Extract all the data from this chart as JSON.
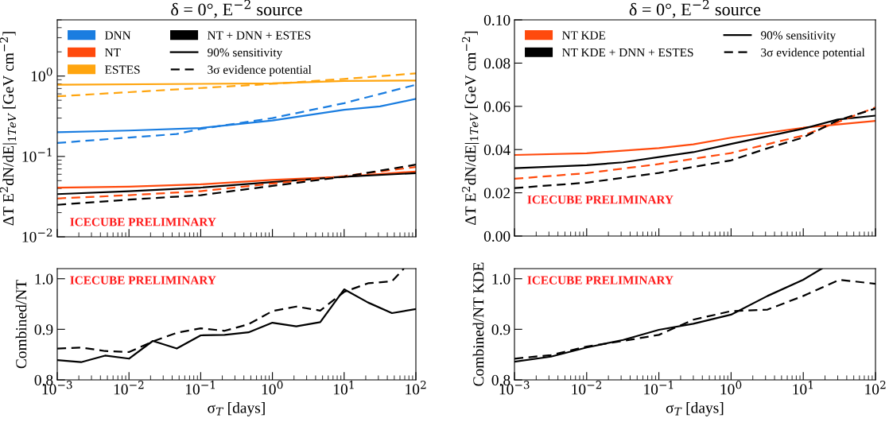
{
  "chart_data": [
    {
      "type": "line",
      "title": "δ = 0°, E$^{−2}$ source",
      "ylabel": "ΔT E$^{2}$dN/dE|$_{1TeV}$ [GeV cm$^{−2}$]",
      "log": "xy",
      "legend": "top left",
      "tick_labels": "y",
      "xlim": [
        0.001,
        100
      ],
      "ylim": [
        0.01,
        5
      ],
      "xticks": [
        {
          "value": 0.001,
          "label": null
        },
        {
          "value": 0.01,
          "label": null
        },
        {
          "value": 0.1,
          "label": null
        },
        {
          "value": 1,
          "label": null
        },
        {
          "value": 10,
          "label": null
        },
        {
          "value": 100,
          "label": null
        }
      ],
      "yticks": [
        {
          "value": 0.01,
          "label": "10$^{−2}$"
        },
        {
          "value": 0.1,
          "label": "10$^{−1}$"
        },
        {
          "value": 1,
          "label": "10$^{0}$"
        }
      ],
      "annotations": [
        "ICECUBE PRELIMINARY"
      ],
      "series": [
        {
          "name": "DNN",
          "color": "#1a7de0",
          "line_style": "solid",
          "x": [
            0.001,
            0.01,
            0.1,
            1,
            10,
            31.6,
            100
          ],
          "values": [
            0.2,
            0.21,
            0.226,
            0.28,
            0.38,
            0.42,
            0.52
          ]
        },
        {
          "name": "NT",
          "color": "#ff4a0d",
          "line_style": "solid",
          "x": [
            0.001,
            0.01,
            0.1,
            1,
            10,
            100
          ],
          "values": [
            0.041,
            0.042,
            0.045,
            0.051,
            0.056,
            0.065
          ]
        },
        {
          "name": "ESTES",
          "color": "#ffa50f",
          "line_style": "solid",
          "x": [
            0.001,
            1,
            10,
            100
          ],
          "values": [
            0.78,
            0.81,
            0.87,
            0.88
          ]
        },
        {
          "name": "NT + DNN + ESTES",
          "color": "#000000",
          "line_style": "solid",
          "x": [
            0.001,
            0.01,
            0.1,
            1,
            10,
            100
          ],
          "values": [
            0.034,
            0.037,
            0.041,
            0.048,
            0.056,
            0.062
          ]
        },
        {
          "name": "90% sensitivity",
          "color": "#000000",
          "line_style": "solid"
        },
        {
          "name": "3σ evidence potential",
          "color": "#000000",
          "line_style": "dashed"
        },
        {
          "color": "#1a7de0",
          "line_style": "dashed",
          "x": [
            0.001,
            0.01,
            0.046,
            0.1,
            1,
            10,
            100
          ],
          "values": [
            0.147,
            0.172,
            0.19,
            0.22,
            0.3,
            0.46,
            0.78
          ]
        },
        {
          "color": "#ff4a0d",
          "line_style": "dashed",
          "x": [
            0.001,
            0.01,
            0.1,
            1,
            10,
            100
          ],
          "values": [
            0.03,
            0.033,
            0.037,
            0.046,
            0.057,
            0.074
          ]
        },
        {
          "color": "#ffa50f",
          "line_style": "dashed",
          "x": [
            0.001,
            0.01,
            0.1,
            1,
            10,
            100
          ],
          "values": [
            0.56,
            0.63,
            0.71,
            0.8,
            0.92,
            1.08
          ]
        },
        {
          "color": "#000000",
          "line_style": "dashed",
          "x": [
            0.001,
            0.01,
            0.1,
            1,
            10,
            100
          ],
          "values": [
            0.025,
            0.029,
            0.033,
            0.043,
            0.056,
            0.079
          ]
        }
      ]
    },
    {
      "type": "line",
      "title": "δ = 0°, E$^{−2}$ source",
      "ylabel": "ΔT E$^{2}$dN/dE|$_{1TeV}$ [GeV cm$^{−2}$]",
      "log": "x",
      "legend": "top left",
      "tick_labels": "y",
      "xlim": [
        0.001,
        100
      ],
      "ylim": [
        0,
        0.1
      ],
      "xticks": [
        {
          "value": 0.001,
          "label": null
        },
        {
          "value": 0.01,
          "label": null
        },
        {
          "value": 0.1,
          "label": null
        },
        {
          "value": 1,
          "label": null
        },
        {
          "value": 10,
          "label": null
        },
        {
          "value": 100,
          "label": null
        }
      ],
      "yticks": [
        {
          "value": 0,
          "label": "0.00"
        },
        {
          "value": 0.02,
          "label": "0.02"
        },
        {
          "value": 0.04,
          "label": "0.04"
        },
        {
          "value": 0.06,
          "label": "0.06"
        },
        {
          "value": 0.08,
          "label": "0.08"
        },
        {
          "value": 0.1,
          "label": "0.10"
        }
      ],
      "annotations": [
        "ICECUBE PRELIMINARY"
      ],
      "series": [
        {
          "name": "NT KDE",
          "color": "#ff4a0d",
          "line_style": "solid",
          "x": [
            0.001,
            0.01,
            0.1,
            0.3,
            1,
            10,
            100
          ],
          "values": [
            0.0375,
            0.0383,
            0.0407,
            0.0424,
            0.0455,
            0.0501,
            0.0533
          ]
        },
        {
          "name": "NT KDE + DNN + ESTES",
          "color": "#000000",
          "line_style": "solid",
          "x": [
            0.001,
            0.01,
            0.032,
            0.1,
            0.3,
            1,
            10,
            30,
            100
          ],
          "values": [
            0.0314,
            0.0328,
            0.0341,
            0.0365,
            0.0388,
            0.0426,
            0.0497,
            0.0539,
            0.0557
          ]
        },
        {
          "name": "90% sensitivity",
          "color": "#000000",
          "line_style": "solid"
        },
        {
          "name": "3σ evidence potential",
          "color": "#000000",
          "line_style": "dashed"
        },
        {
          "color": "#ff4a0d",
          "line_style": "dashed",
          "x": [
            0.001,
            0.01,
            0.1,
            1,
            10,
            100
          ],
          "values": [
            0.0265,
            0.0291,
            0.0333,
            0.0384,
            0.0465,
            0.0595
          ]
        },
        {
          "color": "#000000",
          "line_style": "dashed",
          "x": [
            0.001,
            0.01,
            0.1,
            1,
            3,
            10,
            30,
            100
          ],
          "values": [
            0.0222,
            0.0247,
            0.0292,
            0.035,
            0.0403,
            0.0456,
            0.0535,
            0.059
          ]
        }
      ]
    },
    {
      "type": "line",
      "xlabel": "σ$_{T}$ [days]",
      "ylabel": "Combined/NT",
      "log": "x",
      "xlim": [
        0.001,
        100
      ],
      "ylim": [
        0.8,
        1.02
      ],
      "xticks": [
        {
          "value": 0.001,
          "label": "10$^{−3}$"
        },
        {
          "value": 0.01,
          "label": "10$^{−2}$"
        },
        {
          "value": 0.1,
          "label": "10$^{−1}$"
        },
        {
          "value": 1,
          "label": "10$^{0}$"
        },
        {
          "value": 10,
          "label": "10$^{1}$"
        },
        {
          "value": 100,
          "label": "10$^{2}$"
        }
      ],
      "yticks": [
        {
          "value": 0.8,
          "label": "0.8"
        },
        {
          "value": 0.9,
          "label": "0.9"
        },
        {
          "value": 1,
          "label": "1.0"
        }
      ],
      "annotations": [
        "ICECUBE PRELIMINARY"
      ],
      "series": [
        {
          "color": "#000000",
          "line_style": "solid",
          "x": [
            0.001,
            0.00215,
            0.00464,
            0.01,
            0.0215,
            0.0464,
            0.1,
            0.215,
            0.464,
            1,
            2.15,
            4.64,
            10,
            21.5,
            46.4,
            100
          ],
          "values": [
            0.839,
            0.835,
            0.848,
            0.842,
            0.877,
            0.862,
            0.888,
            0.889,
            0.894,
            0.913,
            0.906,
            0.914,
            0.979,
            0.953,
            0.932,
            0.94
          ]
        },
        {
          "color": "#000000",
          "line_style": "dashed",
          "x": [
            0.001,
            0.00215,
            0.00464,
            0.01,
            0.0215,
            0.0464,
            0.1,
            0.215,
            0.464,
            1,
            2.15,
            4.64,
            10,
            21.5,
            46.4,
            68
          ],
          "values": [
            0.862,
            0.864,
            0.857,
            0.855,
            0.876,
            0.893,
            0.902,
            0.897,
            0.91,
            0.936,
            0.945,
            0.937,
            0.974,
            0.991,
            0.995,
            1.02
          ]
        }
      ]
    },
    {
      "type": "line",
      "xlabel": "σ$_{T}$ [days]",
      "ylabel": "Combined/NT KDE",
      "log": "x",
      "xlim": [
        0.001,
        100
      ],
      "ylim": [
        0.8,
        1.02
      ],
      "xticks": [
        {
          "value": 0.001,
          "label": "10$^{−3}$"
        },
        {
          "value": 0.01,
          "label": "10$^{−2}$"
        },
        {
          "value": 0.1,
          "label": "10$^{−1}$"
        },
        {
          "value": 1,
          "label": "10$^{0}$"
        },
        {
          "value": 10,
          "label": "10$^{1}$"
        },
        {
          "value": 100,
          "label": "10$^{2}$"
        }
      ],
      "yticks": [
        {
          "value": 0.8,
          "label": "0.8"
        },
        {
          "value": 0.9,
          "label": "0.9"
        },
        {
          "value": 1,
          "label": "1.0"
        }
      ],
      "annotations": [
        "ICECUBE PRELIMINARY"
      ],
      "series": [
        {
          "color": "#000000",
          "line_style": "solid",
          "x": [
            0.001,
            0.0032,
            0.01,
            0.032,
            0.1,
            0.3,
            1,
            3.2,
            10,
            18
          ],
          "values": [
            0.836,
            0.846,
            0.864,
            0.879,
            0.899,
            0.911,
            0.929,
            0.966,
            0.998,
            1.02
          ]
        },
        {
          "color": "#000000",
          "line_style": "dashed",
          "x": [
            0.001,
            0.0032,
            0.01,
            0.032,
            0.1,
            0.3,
            1,
            3.2,
            10,
            31.6,
            100
          ],
          "values": [
            0.842,
            0.849,
            0.866,
            0.877,
            0.889,
            0.919,
            0.936,
            0.939,
            0.966,
            0.998,
            0.99
          ]
        }
      ]
    }
  ]
}
